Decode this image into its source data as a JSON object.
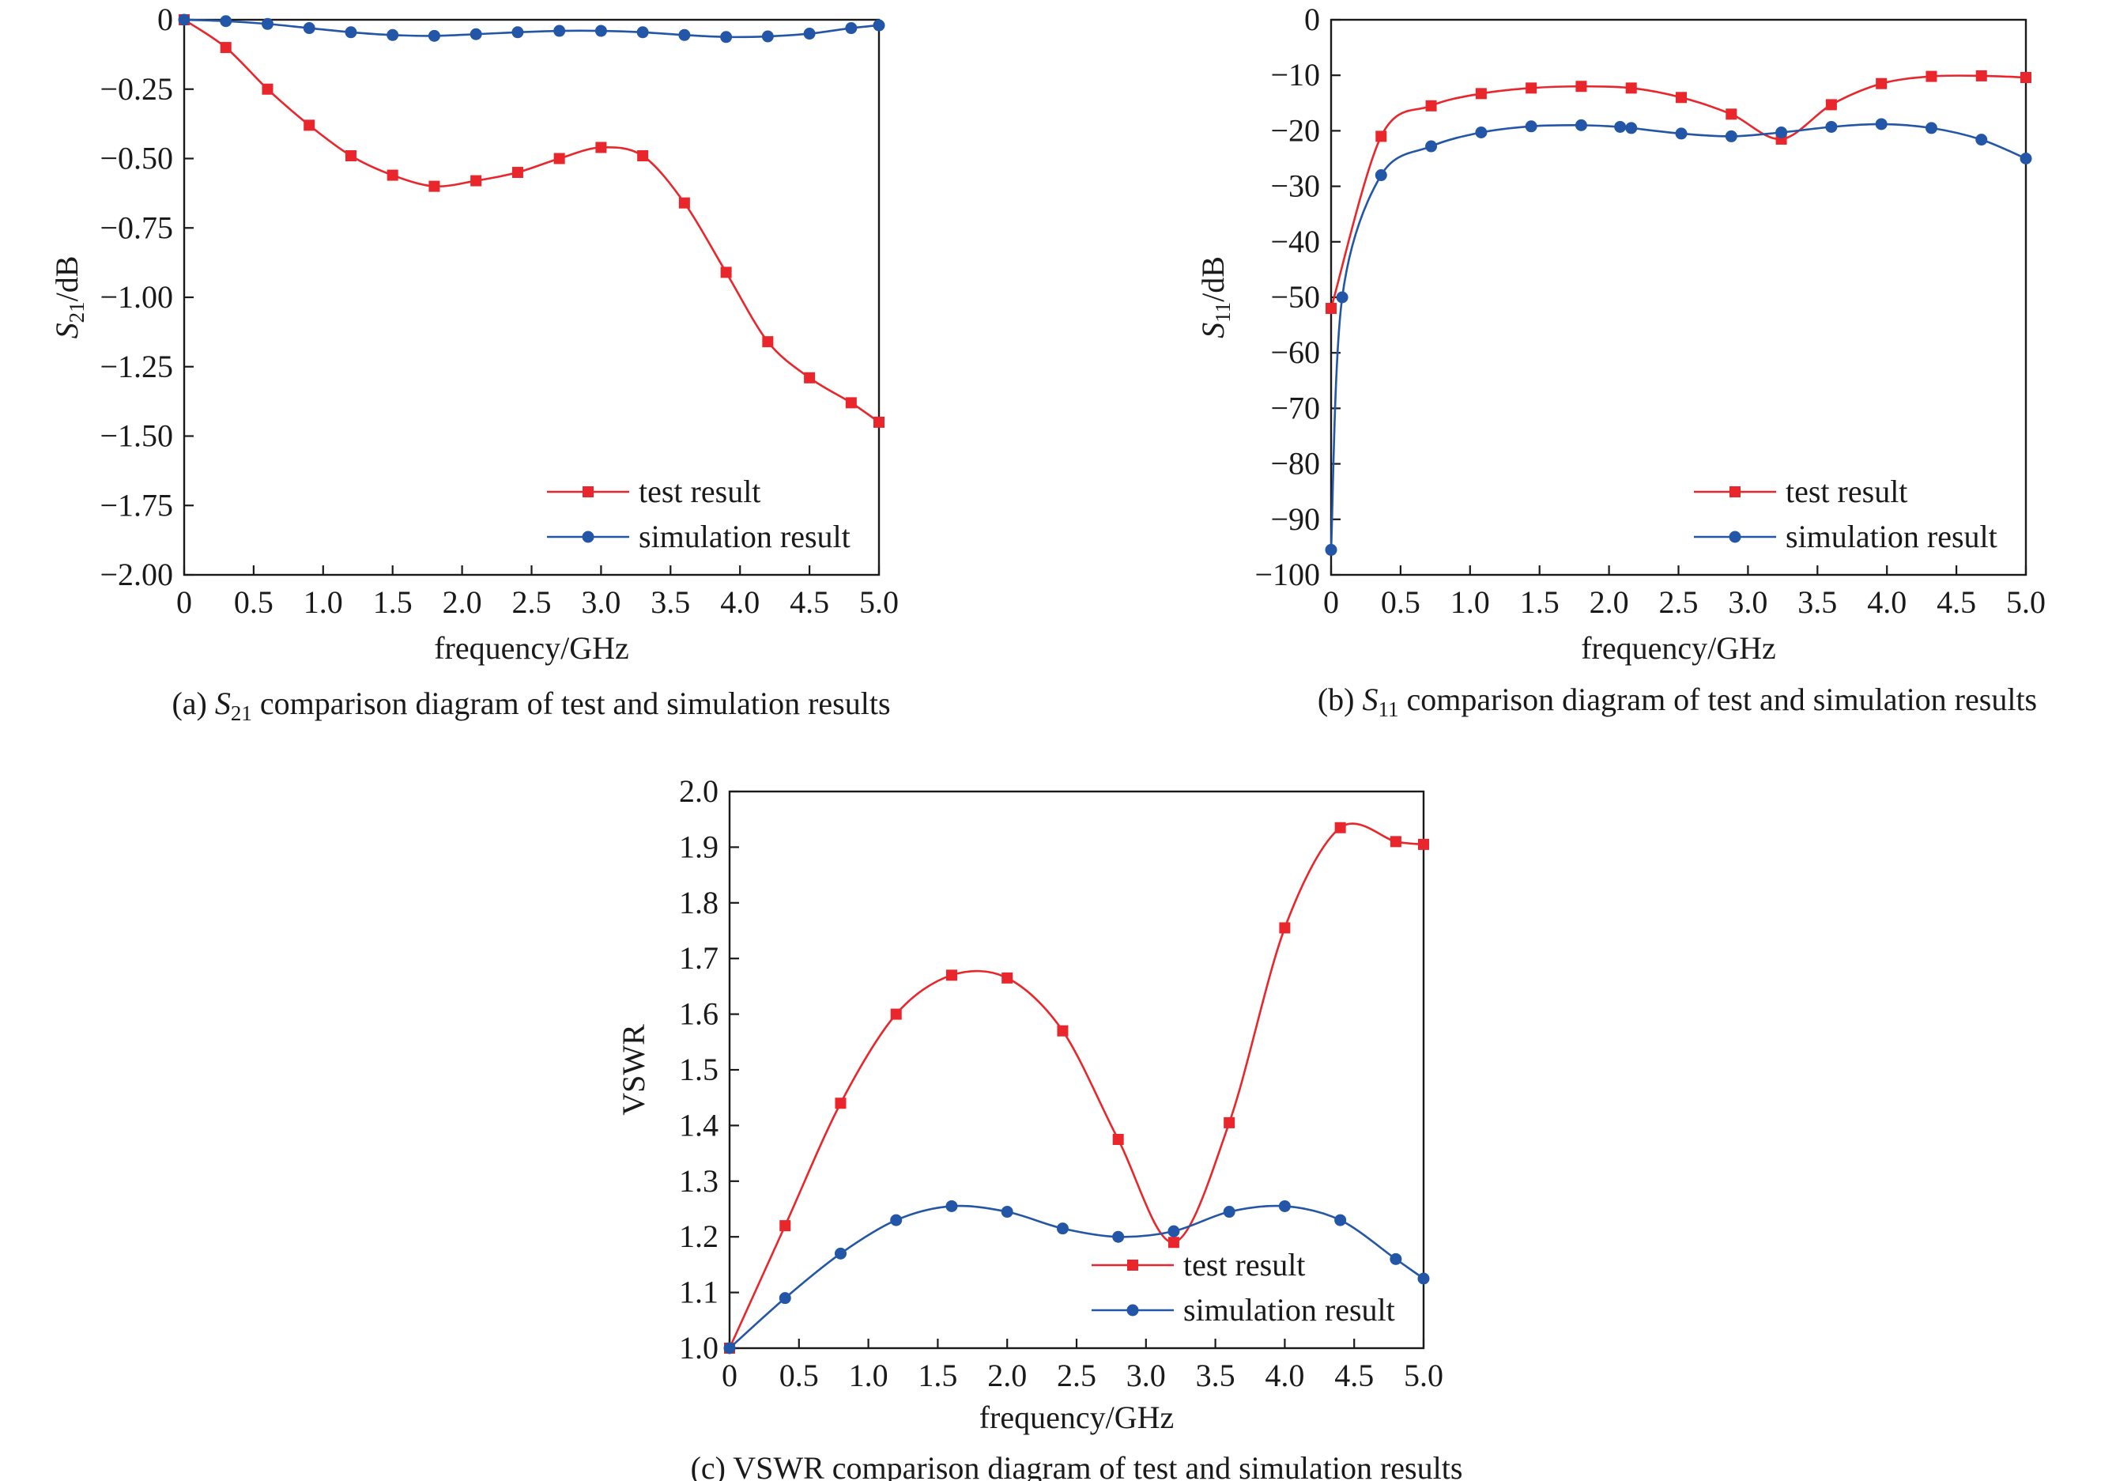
{
  "colors": {
    "test": "#e8262b",
    "simulation": "#2356a6",
    "axis": "#1a1a1a"
  },
  "chart_data": [
    {
      "id": "a",
      "type": "line",
      "caption": {
        "prefix": "(a) ",
        "symbol": "S",
        "sub": "21",
        "rest": " comparison diagram of test and simulation results"
      },
      "xlabel": "frequency/GHz",
      "ylabel": {
        "symbol": "S",
        "sub": "21",
        "rest": "/dB"
      },
      "xlim": [
        0,
        5.0
      ],
      "ylim": [
        -2.0,
        0
      ],
      "xticks": [
        0,
        0.5,
        1.0,
        1.5,
        2.0,
        2.5,
        3.0,
        3.5,
        4.0,
        4.5,
        5.0
      ],
      "xtick_labels": [
        "0",
        "0.5",
        "1.0",
        "1.5",
        "2.0",
        "2.5",
        "3.0",
        "3.5",
        "4.0",
        "4.5",
        "5.0"
      ],
      "yticks": [
        0,
        -0.25,
        -0.5,
        -0.75,
        -1.0,
        -1.25,
        -1.5,
        -1.75,
        -2.0
      ],
      "ytick_labels": [
        "0",
        "−0.25",
        "−0.50",
        "−0.75",
        "−1.00",
        "−1.25",
        "−1.50",
        "−1.75",
        "−2.00"
      ],
      "legend": {
        "position": "lower-right"
      },
      "series": [
        {
          "name": "test  result",
          "color_key": "test",
          "marker": "square",
          "x": [
            0,
            0.3,
            0.6,
            0.9,
            1.2,
            1.5,
            1.8,
            2.1,
            2.4,
            2.7,
            3.0,
            3.3,
            3.6,
            3.9,
            4.2,
            4.5,
            4.8,
            5.0
          ],
          "y": [
            0,
            -0.1,
            -0.25,
            -0.38,
            -0.49,
            -0.56,
            -0.6,
            -0.58,
            -0.55,
            -0.5,
            -0.46,
            -0.49,
            -0.66,
            -0.91,
            -1.16,
            -1.29,
            -1.38,
            -1.45
          ]
        },
        {
          "name": "simulation result",
          "color_key": "simulation",
          "marker": "circle",
          "x": [
            0,
            0.3,
            0.6,
            0.9,
            1.2,
            1.5,
            1.8,
            2.1,
            2.4,
            2.7,
            3.0,
            3.3,
            3.6,
            3.9,
            4.2,
            4.5,
            4.8,
            5.0
          ],
          "y": [
            0,
            -0.005,
            -0.015,
            -0.03,
            -0.045,
            -0.055,
            -0.058,
            -0.052,
            -0.045,
            -0.04,
            -0.04,
            -0.045,
            -0.055,
            -0.062,
            -0.06,
            -0.05,
            -0.03,
            -0.02
          ]
        }
      ]
    },
    {
      "id": "b",
      "type": "line",
      "caption": {
        "prefix": "(b) ",
        "symbol": "S",
        "sub": "11",
        "rest": " comparison diagram of test and simulation results"
      },
      "xlabel": "frequency/GHz",
      "ylabel": {
        "symbol": "S",
        "sub": "11",
        "rest": "/dB"
      },
      "xlim": [
        0,
        5.0
      ],
      "ylim": [
        -100,
        0
      ],
      "xticks": [
        0,
        0.5,
        1.0,
        1.5,
        2.0,
        2.5,
        3.0,
        3.5,
        4.0,
        4.5,
        5.0
      ],
      "xtick_labels": [
        "0",
        "0.5",
        "1.0",
        "1.5",
        "2.0",
        "2.5",
        "3.0",
        "3.5",
        "4.0",
        "4.5",
        "5.0"
      ],
      "yticks": [
        0,
        -10,
        -20,
        -30,
        -40,
        -50,
        -60,
        -70,
        -80,
        -90,
        -100
      ],
      "ytick_labels": [
        "0",
        "−10",
        "−20",
        "−30",
        "−40",
        "−50",
        "−60",
        "−70",
        "−80",
        "−90",
        "−100"
      ],
      "legend": {
        "position": "lower-right"
      },
      "series": [
        {
          "name": "test  result",
          "color_key": "test",
          "marker": "square",
          "x": [
            0,
            0.36,
            0.72,
            1.08,
            1.44,
            1.8,
            2.16,
            2.52,
            2.88,
            3.24,
            3.6,
            3.96,
            4.32,
            4.68,
            5.0
          ],
          "y": [
            -52,
            -21,
            -15.5,
            -13.3,
            -12.3,
            -12,
            -12.3,
            -14,
            -17,
            -21.5,
            -15.3,
            -11.5,
            -10.2,
            -10.1,
            -10.4
          ]
        },
        {
          "name": "simulation result",
          "color_key": "simulation",
          "marker": "circle",
          "x": [
            0,
            0.08,
            0.36,
            0.72,
            1.08,
            1.44,
            1.8,
            2.08,
            2.16,
            2.52,
            2.88,
            3.24,
            3.6,
            3.96,
            4.32,
            4.68,
            5.0
          ],
          "y": [
            -95.5,
            -50,
            -28,
            -22.8,
            -20.3,
            -19.2,
            -19,
            -19.3,
            -19.5,
            -20.5,
            -21,
            -20.3,
            -19.3,
            -18.8,
            -19.5,
            -21.6,
            -25
          ]
        }
      ]
    },
    {
      "id": "c",
      "type": "line",
      "caption": {
        "prefix": "(c) ",
        "symbol": "",
        "sub": "",
        "rest": "VSWR comparison diagram of test and simulation results"
      },
      "xlabel": "frequency/GHz",
      "ylabel": {
        "symbol": "",
        "sub": "",
        "rest": "VSWR"
      },
      "xlim": [
        0,
        5.0
      ],
      "ylim": [
        1.0,
        2.0
      ],
      "xticks": [
        0,
        0.5,
        1.0,
        1.5,
        2.0,
        2.5,
        3.0,
        3.5,
        4.0,
        4.5,
        5.0
      ],
      "xtick_labels": [
        "0",
        "0.5",
        "1.0",
        "1.5",
        "2.0",
        "2.5",
        "3.0",
        "3.5",
        "4.0",
        "4.5",
        "5.0"
      ],
      "yticks": [
        1.0,
        1.1,
        1.2,
        1.3,
        1.4,
        1.5,
        1.6,
        1.7,
        1.8,
        1.9,
        2.0
      ],
      "ytick_labels": [
        "1.0",
        "1.1",
        "1.2",
        "1.3",
        "1.4",
        "1.5",
        "1.6",
        "1.7",
        "1.8",
        "1.9",
        "2.0"
      ],
      "legend": {
        "position": "lower-right"
      },
      "series": [
        {
          "name": "test  result",
          "color_key": "test",
          "marker": "square",
          "x": [
            0,
            0.4,
            0.8,
            1.2,
            1.6,
            2.0,
            2.4,
            2.8,
            3.2,
            3.6,
            4.0,
            4.4,
            4.8,
            5.0
          ],
          "y": [
            1.0,
            1.22,
            1.44,
            1.6,
            1.67,
            1.665,
            1.57,
            1.375,
            1.19,
            1.405,
            1.755,
            1.935,
            1.91,
            1.905
          ]
        },
        {
          "name": "simulation result",
          "color_key": "simulation",
          "marker": "circle",
          "x": [
            0,
            0.4,
            0.8,
            1.2,
            1.6,
            2.0,
            2.4,
            2.8,
            3.2,
            3.6,
            4.0,
            4.4,
            4.8,
            5.0
          ],
          "y": [
            1.0,
            1.09,
            1.17,
            1.23,
            1.255,
            1.245,
            1.215,
            1.2,
            1.21,
            1.245,
            1.255,
            1.23,
            1.16,
            1.125
          ]
        }
      ]
    }
  ]
}
